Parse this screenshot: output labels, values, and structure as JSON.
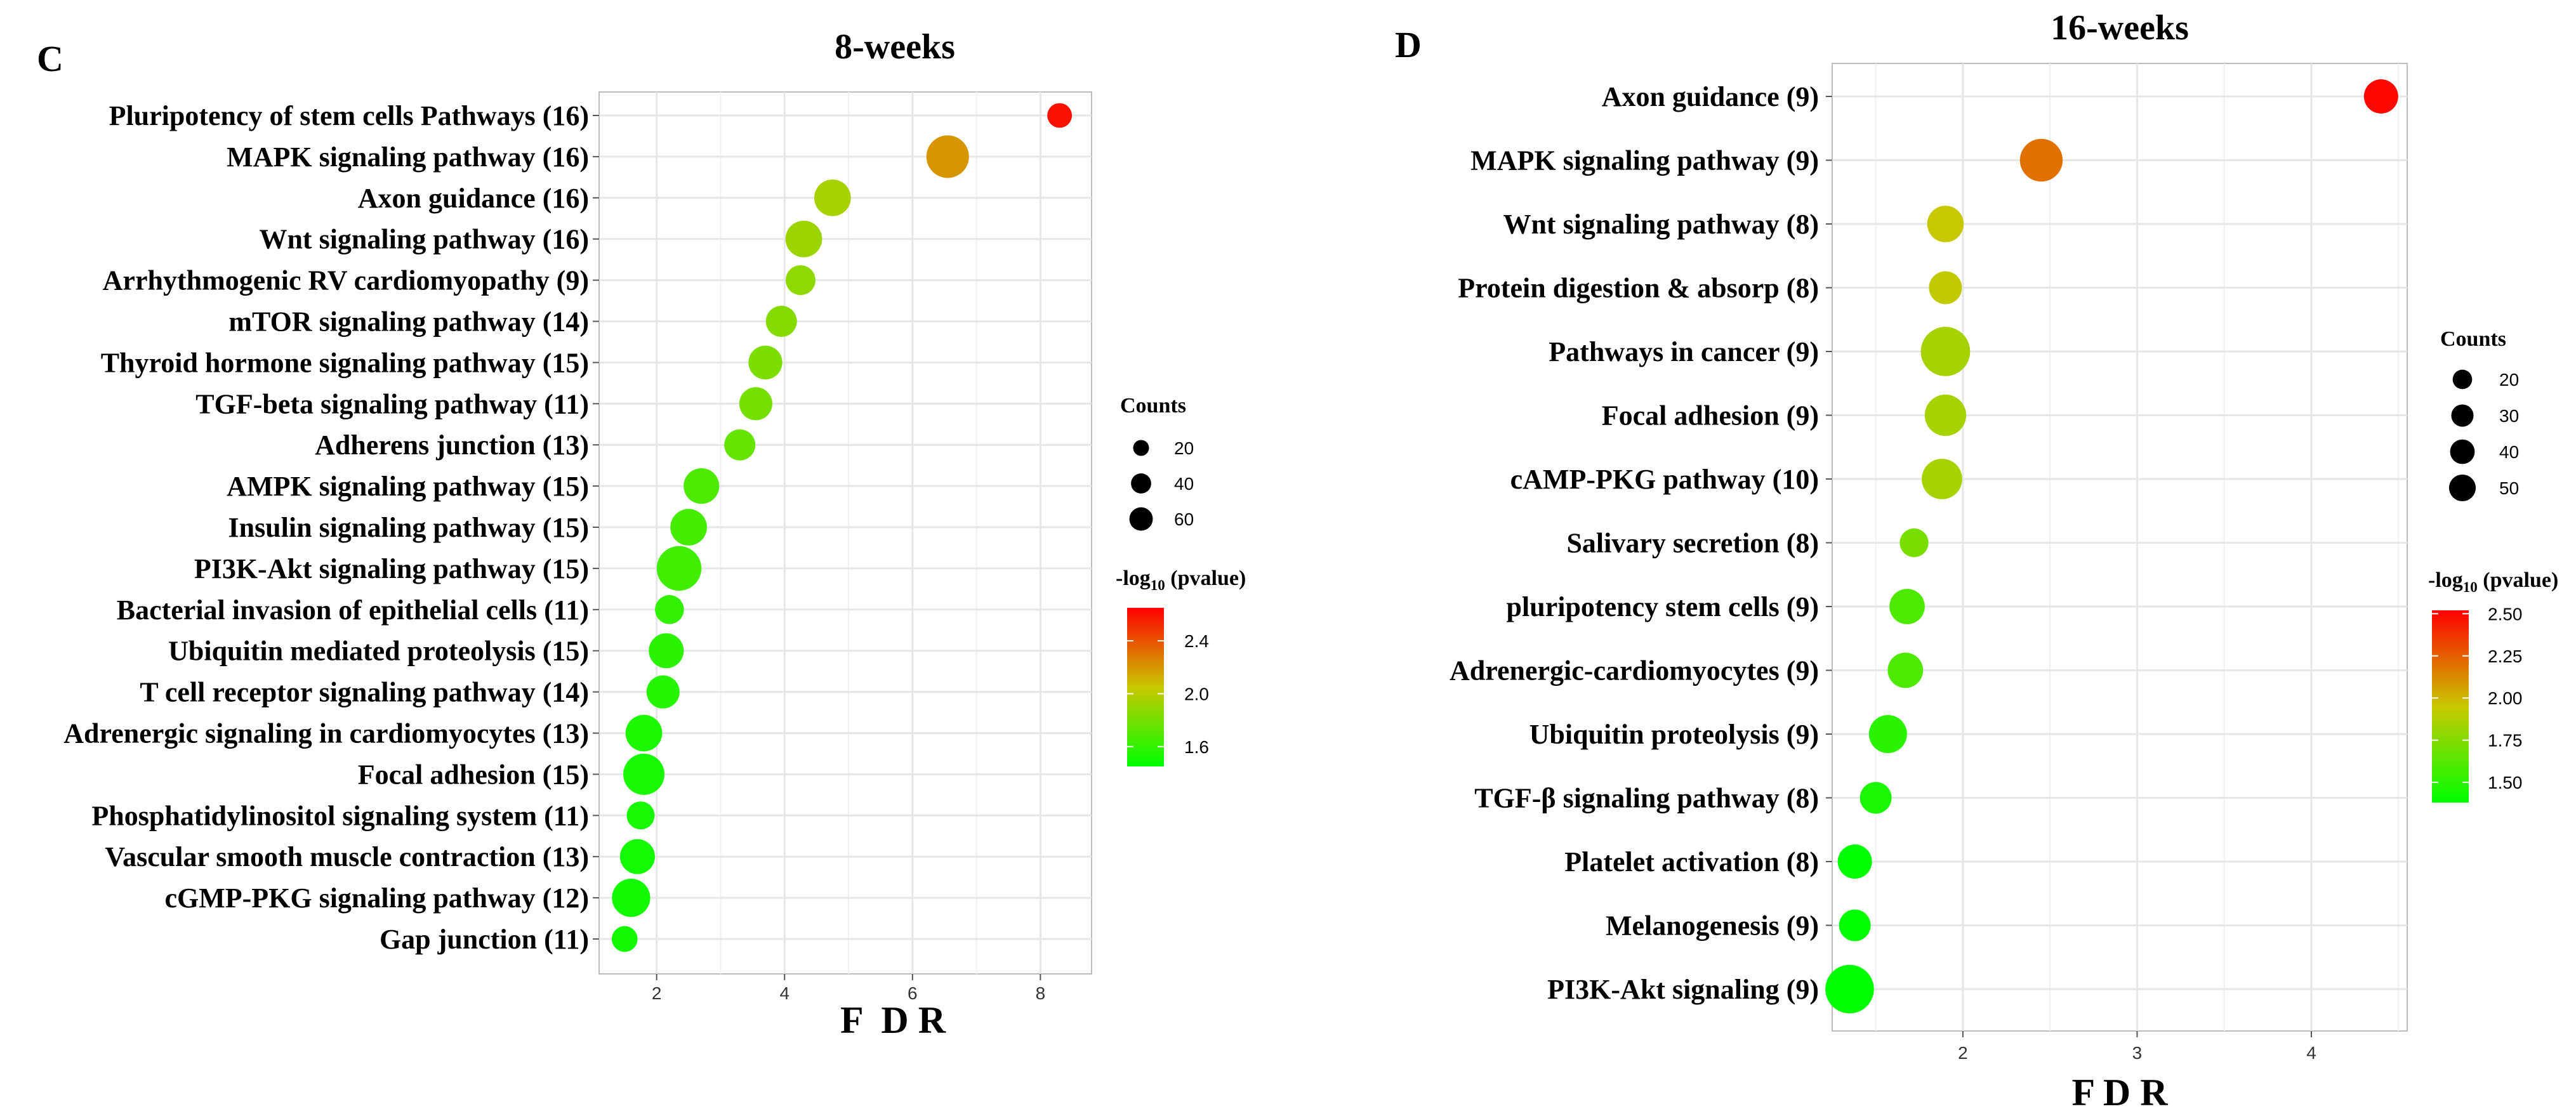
{
  "chart_data": [
    {
      "panel": "C",
      "type": "scatter",
      "title": "8-weeks",
      "xlabel": "F  D R",
      "xlim": [
        1.1,
        8.8
      ],
      "xticks": [
        2,
        4,
        6,
        8
      ],
      "categories": [
        {
          "label": "Pluripotency of stem cells Pathways (16)",
          "fdr": 8.3,
          "count": 12,
          "logp": 2.6
        },
        {
          "label": "MAPK signaling pathway (16)",
          "fdr": 6.55,
          "count": 60,
          "logp": 2.2
        },
        {
          "label": "Axon guidance (16)",
          "fdr": 4.75,
          "count": 40,
          "logp": 1.95
        },
        {
          "label": "Wnt signaling pathway (16)",
          "fdr": 4.3,
          "count": 40,
          "logp": 1.92
        },
        {
          "label": "Arrhythmogenic RV cardiomyopathy (9)",
          "fdr": 4.25,
          "count": 22,
          "logp": 1.88
        },
        {
          "label": "mTOR signaling pathway (14)",
          "fdr": 3.95,
          "count": 25,
          "logp": 1.85
        },
        {
          "label": "Thyroid hormone signaling pathway (15)",
          "fdr": 3.7,
          "count": 32,
          "logp": 1.82
        },
        {
          "label": "TGF-beta signaling pathway (11)",
          "fdr": 3.55,
          "count": 30,
          "logp": 1.8
        },
        {
          "label": "Adherens junction (13)",
          "fdr": 3.3,
          "count": 25,
          "logp": 1.75
        },
        {
          "label": "AMPK signaling pathway (15)",
          "fdr": 2.7,
          "count": 37,
          "logp": 1.68
        },
        {
          "label": "Insulin signaling pathway (15)",
          "fdr": 2.5,
          "count": 40,
          "logp": 1.66
        },
        {
          "label": "PI3K-Akt signaling pathway (15)",
          "fdr": 2.35,
          "count": 68,
          "logp": 1.64
        },
        {
          "label": "Bacterial invasion of epithelial cells (11)",
          "fdr": 2.2,
          "count": 20,
          "logp": 1.6,
          "highlight": true
        },
        {
          "label": "Ubiquitin mediated proteolysis (15)",
          "fdr": 2.15,
          "count": 35,
          "logp": 1.58
        },
        {
          "label": "T cell receptor signaling pathway (14)",
          "fdr": 2.1,
          "count": 30,
          "logp": 1.56
        },
        {
          "label": "Adrenergic signaling in cardiomyocytes (13)",
          "fdr": 1.8,
          "count": 40,
          "logp": 1.53
        },
        {
          "label": "Focal adhesion (15)",
          "fdr": 1.8,
          "count": 55,
          "logp": 1.52
        },
        {
          "label": "Phosphatidylinositol signaling system (11)",
          "fdr": 1.75,
          "count": 18,
          "logp": 1.52
        },
        {
          "label": "Vascular smooth muscle contraction (13)",
          "fdr": 1.7,
          "count": 35,
          "logp": 1.51
        },
        {
          "label": "cGMP-PKG signaling pathway (12)",
          "fdr": 1.6,
          "count": 45,
          "logp": 1.5
        },
        {
          "label": "Gap junction (11)",
          "fdr": 1.5,
          "count": 14,
          "logp": 1.5
        }
      ],
      "size_legend": {
        "title": "Counts",
        "values": [
          20,
          40,
          60
        ]
      },
      "color_legend": {
        "title": "-log10 (pvalue)",
        "ticks": [
          "1.6",
          "2.0",
          "2.4"
        ],
        "range": [
          1.45,
          2.65
        ],
        "low_color": "#00ff00",
        "mid_color": "#c8c800",
        "high_color": "#ff0000"
      }
    },
    {
      "panel": "D",
      "type": "scatter",
      "title": "16-weeks",
      "xlabel": "F D R",
      "xlim": [
        1.25,
        4.55
      ],
      "xticks": [
        2,
        3,
        4
      ],
      "categories": [
        {
          "label": "Axon guidance (9)",
          "fdr": 4.4,
          "count": 18,
          "logp": 2.5
        },
        {
          "label": "MAPK signaling pathway (9)",
          "fdr": 2.45,
          "count": 35,
          "logp": 2.2,
          "highlight": true
        },
        {
          "label": "Wnt signaling pathway (8)",
          "fdr": 1.9,
          "count": 22,
          "logp": 1.95
        },
        {
          "label": "Protein digestion & absorp (8)",
          "fdr": 1.9,
          "count": 16,
          "logp": 1.93
        },
        {
          "label": "Pathways in cancer (9)",
          "fdr": 1.9,
          "count": 52,
          "logp": 1.85
        },
        {
          "label": "Focal adhesion (9)",
          "fdr": 1.9,
          "count": 32,
          "logp": 1.85
        },
        {
          "label": "cAMP-PKG pathway (10)",
          "fdr": 1.88,
          "count": 30,
          "logp": 1.85
        },
        {
          "label": "Salivary secretion (8)",
          "fdr": 1.72,
          "count": 10,
          "logp": 1.72
        },
        {
          "label": "pluripotency stem cells (9)",
          "fdr": 1.68,
          "count": 20,
          "logp": 1.6
        },
        {
          "label": "Adrenergic-cardiomyocytes (9)",
          "fdr": 1.67,
          "count": 20,
          "logp": 1.6
        },
        {
          "label": "Ubiquitin proteolysis (9)",
          "fdr": 1.57,
          "count": 25,
          "logp": 1.5
        },
        {
          "label": "TGF-β signaling pathway (8)",
          "fdr": 1.5,
          "count": 14,
          "logp": 1.45
        },
        {
          "label": "Platelet activation (8)",
          "fdr": 1.38,
          "count": 18,
          "logp": 1.38
        },
        {
          "label": "Melanogenesis (9)",
          "fdr": 1.38,
          "count": 14,
          "logp": 1.38
        },
        {
          "label": "PI3K-Akt signaling (9)",
          "fdr": 1.35,
          "count": 50,
          "logp": 1.32
        }
      ],
      "size_legend": {
        "title": "Counts",
        "values": [
          20,
          30,
          40,
          50
        ]
      },
      "color_legend": {
        "title": "-log10 (pvalue)",
        "ticks": [
          "1.50",
          "1.75",
          "2.00",
          "2.25",
          "2.50"
        ],
        "range": [
          1.38,
          2.52
        ],
        "low_color": "#00ff00",
        "mid_color": "#c8c800",
        "high_color": "#ff0000"
      }
    }
  ],
  "colors": {
    "highlight": "#e8141d",
    "grid": "#e6e6e6",
    "axis": "#555555"
  }
}
